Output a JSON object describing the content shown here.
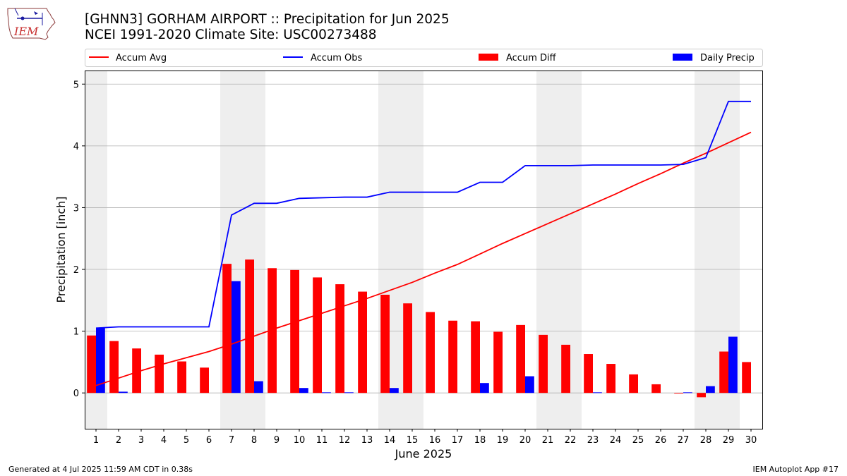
{
  "header": {
    "title_line1": "[GHNN3] GORHAM AIRPORT :: Precipitation for Jun 2025",
    "title_line2": "NCEI 1991-2020 Climate Site: USC00273488",
    "logo_text": "IEM"
  },
  "footer": {
    "left": "Generated at 4 Jul 2025 11:59 AM CDT in 0.38s",
    "right": "IEM Autoplot App #17"
  },
  "colors": {
    "avg": "#ff0000",
    "obs": "#0000ff",
    "diff": "#ff0000",
    "daily": "#0000ff",
    "weekend_shade": "#eeeeee",
    "grid": "#b0b0b0"
  },
  "chart_data": {
    "type": "bar",
    "xlabel": "June 2025",
    "ylabel": "Precipitation [inch]",
    "xlim": [
      0.5,
      30.5
    ],
    "ylim": [
      -0.58,
      5.22
    ],
    "grid": "horizontal",
    "legend_position": "top",
    "x": [
      1,
      2,
      3,
      4,
      5,
      6,
      7,
      8,
      9,
      10,
      11,
      12,
      13,
      14,
      15,
      16,
      17,
      18,
      19,
      20,
      21,
      22,
      23,
      24,
      25,
      26,
      27,
      28,
      29,
      30
    ],
    "yticks": [
      0,
      1,
      2,
      3,
      4,
      5
    ],
    "shaded_days": [
      [
        1
      ],
      [
        7,
        8
      ],
      [
        14,
        15
      ],
      [
        21,
        22
      ],
      [
        28,
        29
      ]
    ],
    "series": [
      {
        "name": "Accum Avg",
        "kind": "line",
        "values": [
          0.12,
          0.24,
          0.36,
          0.47,
          0.57,
          0.67,
          0.79,
          0.92,
          1.05,
          1.17,
          1.29,
          1.41,
          1.53,
          1.66,
          1.79,
          1.94,
          2.08,
          2.25,
          2.42,
          2.58,
          2.74,
          2.9,
          3.06,
          3.22,
          3.39,
          3.55,
          3.72,
          3.88,
          4.05,
          4.22
        ]
      },
      {
        "name": "Accum Obs",
        "kind": "line",
        "values": [
          1.05,
          1.07,
          1.07,
          1.07,
          1.07,
          1.07,
          2.88,
          3.07,
          3.07,
          3.15,
          3.16,
          3.17,
          3.17,
          3.25,
          3.25,
          3.25,
          3.25,
          3.41,
          3.41,
          3.68,
          3.68,
          3.68,
          3.69,
          3.69,
          3.69,
          3.69,
          3.7,
          3.81,
          4.72,
          4.72
        ]
      },
      {
        "name": "Accum Diff",
        "kind": "bar",
        "values": [
          0.93,
          0.84,
          0.72,
          0.62,
          0.51,
          0.41,
          2.09,
          2.16,
          2.02,
          1.99,
          1.87,
          1.76,
          1.64,
          1.59,
          1.45,
          1.31,
          1.17,
          1.16,
          0.99,
          1.1,
          0.94,
          0.78,
          0.63,
          0.47,
          0.3,
          0.14,
          -0.01,
          -0.07,
          0.67,
          0.5
        ]
      },
      {
        "name": "Daily Precip",
        "kind": "bar",
        "values": [
          1.05,
          0.02,
          0.0,
          0.0,
          0.0,
          0.0,
          1.81,
          0.19,
          0.0,
          0.08,
          0.01,
          0.01,
          0.0,
          0.08,
          0.0,
          0.0,
          0.0,
          0.16,
          0.0,
          0.27,
          0.0,
          0.0,
          0.01,
          0.0,
          0.0,
          0.0,
          0.01,
          0.11,
          0.91,
          0.0
        ]
      }
    ]
  }
}
